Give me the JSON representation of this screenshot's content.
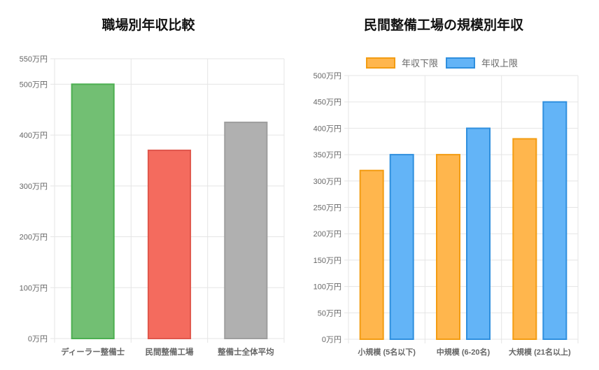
{
  "colors": {
    "grid": "#e5e5e5",
    "axis_text": "#666666",
    "title_text": "#111111"
  },
  "chart_data": [
    {
      "type": "bar",
      "title": "職場別年収比較",
      "categories": [
        "ディーラー整備士",
        "民間整備工場",
        "整備士全体平均"
      ],
      "values": [
        500,
        370,
        425
      ],
      "bar_fills": [
        "#72bf73",
        "#f46b5e",
        "#b0b0b0"
      ],
      "bar_strokes": [
        "#4caf50",
        "#e0574c",
        "#9e9e9e"
      ],
      "ylim": [
        0,
        550
      ],
      "yticks": [
        0,
        100,
        200,
        300,
        400,
        500,
        550
      ],
      "tick_suffix": "万円",
      "grid": true
    },
    {
      "type": "bar",
      "title": "民間整備工場の規模別年収",
      "categories": [
        "小規模 (5名以下)",
        "中規模 (6-20名)",
        "大規模 (21名以上)"
      ],
      "series": [
        {
          "name": "年収下限",
          "values": [
            320,
            350,
            380
          ],
          "fill": "#ffb64d",
          "stroke": "#f39c12"
        },
        {
          "name": "年収上限",
          "values": [
            350,
            400,
            450
          ],
          "fill": "#63b4f7",
          "stroke": "#2f8fde"
        }
      ],
      "ylim": [
        0,
        500
      ],
      "yticks": [
        0,
        50,
        100,
        150,
        200,
        250,
        300,
        350,
        400,
        450,
        500
      ],
      "tick_suffix": "万円",
      "legend": "top",
      "grid": true
    }
  ]
}
